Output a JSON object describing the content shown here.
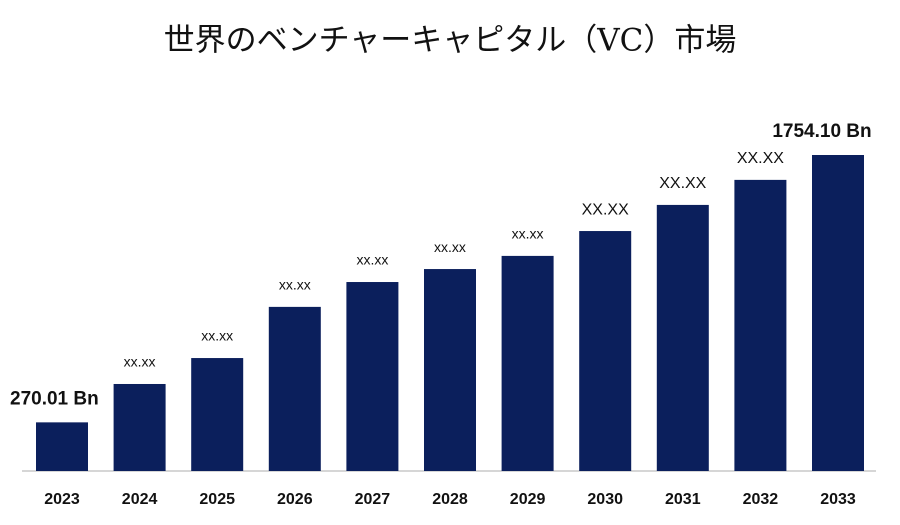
{
  "chart_data": {
    "type": "bar",
    "title": "世界のベンチャーキャピタル（VC）市場",
    "categories": [
      "2023",
      "2024",
      "2025",
      "2026",
      "2027",
      "2028",
      "2029",
      "2030",
      "2031",
      "2032",
      "2033"
    ],
    "values": [
      270.01,
      483,
      627,
      911,
      1049,
      1121,
      1194,
      1332,
      1477,
      1616,
      1754.1
    ],
    "value_labels": [
      "270.01 Bn",
      "xx.xx",
      "xx.xx",
      "xx.xx",
      "xx.xx",
      "xx.xx",
      "xx.xx",
      "XX.XX",
      "XX.XX",
      "XX.XX",
      "1754.10 Bn"
    ],
    "color": "#0b1f5c"
  }
}
